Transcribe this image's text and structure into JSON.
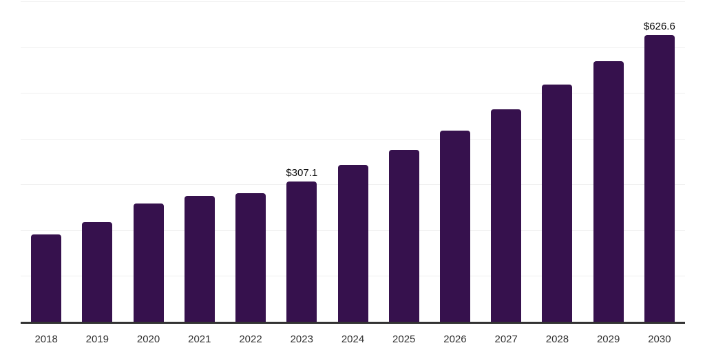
{
  "chart_data": {
    "type": "bar",
    "title": "",
    "xlabel": "",
    "ylabel": "",
    "categories": [
      "2018",
      "2019",
      "2020",
      "2021",
      "2022",
      "2023",
      "2024",
      "2025",
      "2026",
      "2027",
      "2028",
      "2029",
      "2030"
    ],
    "values": [
      191.1,
      218.2,
      257.8,
      274.9,
      280.9,
      307.1,
      342.6,
      375.7,
      417.7,
      463.6,
      517.9,
      568.8,
      626.6
    ],
    "bar_labels": [
      "",
      "",
      "",
      "",
      "",
      "$307.1",
      "",
      "",
      "",
      "",
      "",
      "",
      "$626.6"
    ],
    "ylim": [
      0,
      700
    ],
    "gridline_interval": 100,
    "grid": "horizontal-only",
    "legend": "none",
    "y_axis_tick_labels_visible": false,
    "colors": {
      "bar": "#36114d",
      "grid_line": "#efefef",
      "axis_line": "#333333",
      "tick_label": "#333333",
      "data_label": "#0a0a0a",
      "background": "#ffffff"
    }
  }
}
